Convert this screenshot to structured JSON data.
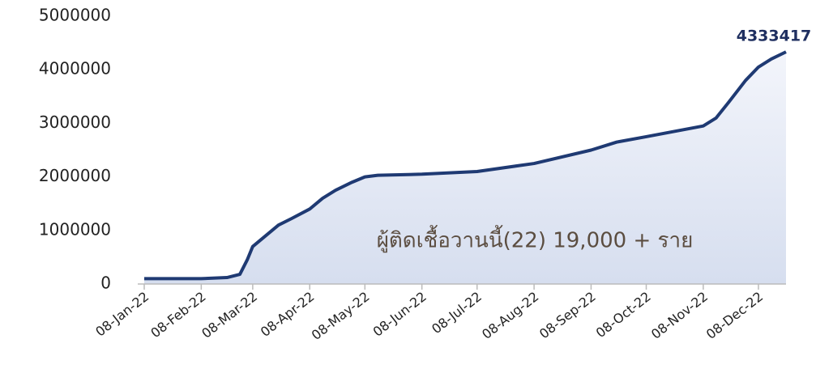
{
  "chart_data": {
    "type": "area",
    "x": [
      "2022-01-08",
      "2022-02-08",
      "2022-02-22",
      "2022-03-01",
      "2022-03-05",
      "2022-03-08",
      "2022-03-15",
      "2022-03-22",
      "2022-03-29",
      "2022-04-08",
      "2022-04-15",
      "2022-04-22",
      "2022-05-01",
      "2022-05-08",
      "2022-05-15",
      "2022-06-08",
      "2022-07-08",
      "2022-08-08",
      "2022-09-08",
      "2022-09-22",
      "2022-10-08",
      "2022-11-08",
      "2022-11-15",
      "2022-11-22",
      "2022-12-01",
      "2022-12-08",
      "2022-12-15",
      "2022-12-23"
    ],
    "values": [
      100000,
      100000,
      120000,
      180000,
      450000,
      700000,
      900000,
      1100000,
      1220000,
      1400000,
      1600000,
      1750000,
      1900000,
      2000000,
      2030000,
      2050000,
      2100000,
      2250000,
      2500000,
      2650000,
      2750000,
      2950000,
      3100000,
      3400000,
      3800000,
      4050000,
      4200000,
      4333417
    ],
    "color": "#1f3a73",
    "xlim": [
      "2022-01-08",
      "2022-12-23"
    ],
    "xticks": [
      {
        "value": "2022-01-08",
        "label": "08-Jan-22"
      },
      {
        "value": "2022-02-08",
        "label": "08-Feb-22"
      },
      {
        "value": "2022-03-08",
        "label": "08-Mar-22"
      },
      {
        "value": "2022-04-08",
        "label": "08-Apr-22"
      },
      {
        "value": "2022-05-08",
        "label": "08-May-22"
      },
      {
        "value": "2022-06-08",
        "label": "08-Jun-22"
      },
      {
        "value": "2022-07-08",
        "label": "08-Jul-22"
      },
      {
        "value": "2022-08-08",
        "label": "08-Aug-22"
      },
      {
        "value": "2022-09-08",
        "label": "08-Sep-22"
      },
      {
        "value": "2022-10-08",
        "label": "08-Oct-22"
      },
      {
        "value": "2022-11-08",
        "label": "08-Nov-22"
      },
      {
        "value": "2022-12-08",
        "label": "08-Dec-22"
      }
    ],
    "ylim": [
      0,
      5000000
    ],
    "yticks": [
      0,
      1000000,
      2000000,
      3000000,
      4000000,
      5000000
    ],
    "annotation": "ผู้ติดเชื้อวานนี้(22) 19,000 + ราย"
  }
}
